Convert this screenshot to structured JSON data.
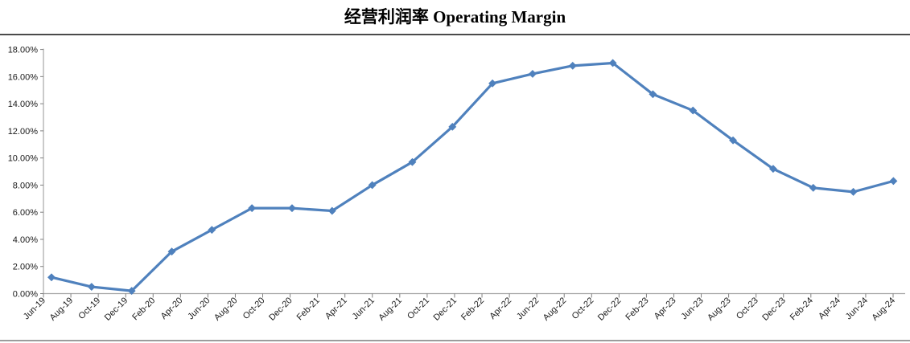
{
  "header": {
    "title": "经营利润率 Operating Margin"
  },
  "chart_data": {
    "type": "line",
    "title": "经营利润率 Operating Margin",
    "legend": false,
    "grid": false,
    "marker": "diamond",
    "line_color": "#4F81BD",
    "axis_color": "#A6A6A6",
    "tick_color": "#808080",
    "label_color": "#1a1a1a",
    "ylim": [
      0,
      18
    ],
    "y_tick_labels": [
      "0.00%",
      "2.00%",
      "4.00%",
      "6.00%",
      "8.00%",
      "10.00%",
      "12.00%",
      "14.00%",
      "16.00%",
      "18.00%"
    ],
    "y_tick_values": [
      0,
      2,
      4,
      6,
      8,
      10,
      12,
      14,
      16,
      18
    ],
    "x_tick_labels": [
      "Jun-19",
      "Aug-19",
      "Oct-19",
      "Dec-19",
      "Feb-20",
      "Apr-20",
      "Jun-20",
      "Aug-20",
      "Oct-20",
      "Dec-20",
      "Feb-21",
      "Apr-21",
      "Jun-21",
      "Aug-21",
      "Oct-21",
      "Dec-21",
      "Feb-22",
      "Apr-22",
      "Jun-22",
      "Aug-22",
      "Oct-22",
      "Dec-22",
      "Feb-23",
      "Apr-23",
      "Jun-23",
      "Aug-23",
      "Oct-23",
      "Dec-23",
      "Feb-24",
      "Apr-24",
      "Jun-24",
      "Aug-24"
    ],
    "series": [
      {
        "name": "Operating Margin",
        "unit": "%",
        "x": [
          "Jun-19",
          "Sep-19",
          "Dec-19",
          "Mar-20",
          "Jun-20",
          "Sep-20",
          "Dec-20",
          "Mar-21",
          "Jun-21",
          "Sep-21",
          "Dec-21",
          "Mar-22",
          "Jun-22",
          "Sep-22",
          "Dec-22",
          "Mar-23",
          "Jun-23",
          "Sep-23",
          "Dec-23",
          "Mar-24",
          "Jun-24",
          "Sep-24"
        ],
        "values": [
          1.2,
          0.5,
          0.2,
          3.1,
          4.7,
          6.3,
          6.3,
          6.1,
          8.0,
          9.7,
          12.3,
          15.5,
          16.2,
          16.8,
          17.0,
          14.7,
          13.5,
          11.3,
          9.2,
          7.8,
          7.5,
          8.3
        ]
      }
    ]
  }
}
